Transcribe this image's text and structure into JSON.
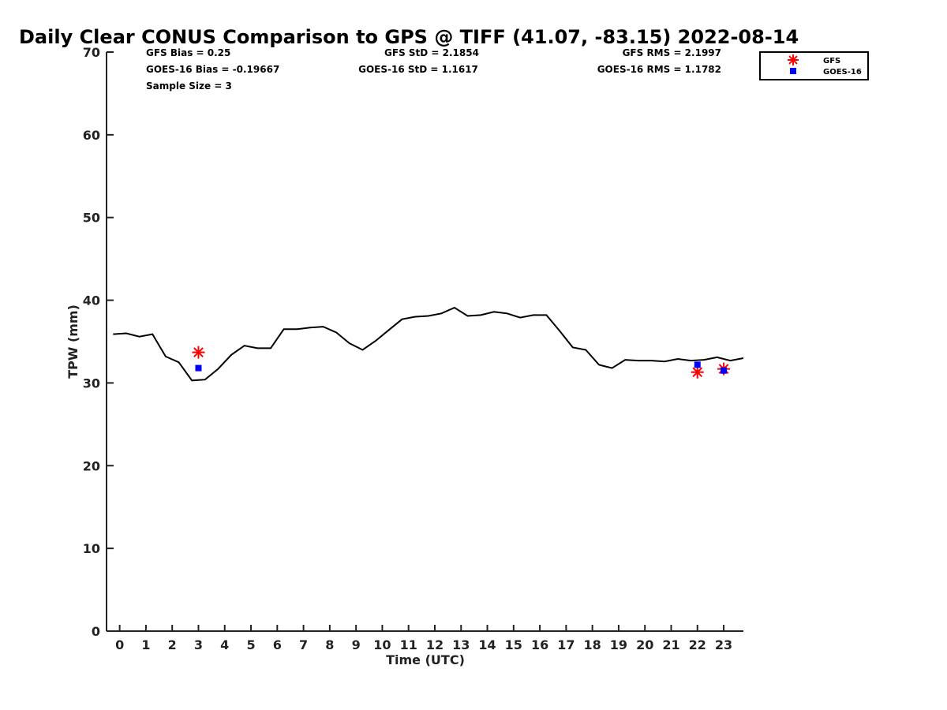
{
  "chart_data": {
    "type": "line",
    "title": "Daily Clear CONUS Comparison to GPS @ TIFF (41.07, -83.15) 2022-08-14",
    "xlabel": "Time (UTC)",
    "ylabel": "TPW (mm)",
    "xlim": [
      -0.5,
      23.75
    ],
    "ylim": [
      0,
      70
    ],
    "xticks": [
      0,
      1,
      2,
      3,
      4,
      5,
      6,
      7,
      8,
      9,
      10,
      11,
      12,
      13,
      14,
      15,
      16,
      17,
      18,
      19,
      20,
      21,
      22,
      23
    ],
    "yticks": [
      0,
      10,
      20,
      30,
      40,
      50,
      60,
      70
    ],
    "grid": false,
    "legend_position": "top-right, outside plot",
    "stats": {
      "gfs_bias": "GFS Bias = 0.25",
      "goes_bias": "GOES-16 Bias = -0.19667",
      "sample_size": "Sample Size = 3",
      "gfs_std": "GFS StD = 2.1854",
      "goes_std": "GOES-16 StD = 1.1617",
      "gfs_rms": "GFS RMS = 2.1997",
      "goes_rms": "GOES-16 RMS = 1.1782"
    },
    "series": [
      {
        "kind": "line",
        "color": "#000000",
        "x": [
          -0.25,
          0.25,
          0.75,
          1.25,
          1.75,
          2.25,
          2.75,
          3.25,
          3.75,
          4.25,
          4.75,
          5.25,
          5.75,
          6.25,
          6.75,
          7.25,
          7.75,
          8.25,
          8.75,
          9.25,
          9.75,
          10.25,
          10.75,
          11.25,
          11.75,
          12.25,
          12.75,
          13.25,
          13.75,
          14.25,
          14.75,
          15.25,
          15.75,
          16.25,
          16.75,
          17.25,
          17.75,
          18.25,
          18.75,
          19.25,
          19.75,
          20.25,
          20.75,
          21.25,
          21.75,
          22.25,
          22.75,
          23.25,
          23.75
        ],
        "y": [
          35.9,
          36.0,
          35.6,
          35.9,
          33.2,
          32.5,
          30.3,
          30.4,
          31.7,
          33.4,
          34.5,
          34.2,
          34.2,
          36.5,
          36.5,
          36.7,
          36.8,
          36.1,
          34.8,
          34.0,
          35.1,
          36.4,
          37.7,
          38.0,
          38.1,
          38.4,
          39.1,
          38.1,
          38.2,
          38.6,
          38.4,
          37.9,
          38.2,
          38.2,
          36.3,
          34.3,
          34.0,
          32.2,
          31.8,
          32.8,
          32.7,
          32.7,
          32.6,
          32.9,
          32.7,
          32.8,
          33.1,
          32.7,
          33.0
        ]
      },
      {
        "name": "GFS",
        "kind": "scatter",
        "marker": "asterisk",
        "color": "#ff0000",
        "x": [
          3,
          22,
          23
        ],
        "y": [
          33.7,
          31.3,
          31.7
        ]
      },
      {
        "name": "GOES-16",
        "kind": "scatter",
        "marker": "square",
        "color": "#0000ff",
        "x": [
          3,
          22,
          23
        ],
        "y": [
          31.8,
          32.2,
          31.5
        ]
      }
    ]
  }
}
